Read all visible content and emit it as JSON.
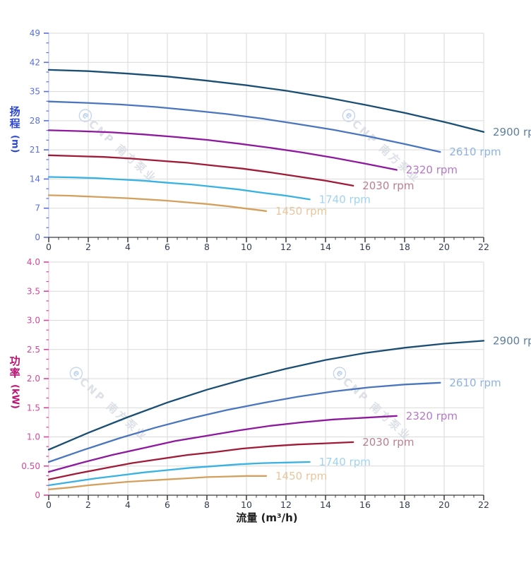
{
  "watermark": {
    "logo": "ⓔ",
    "text": "CNP 南方泵业"
  },
  "x_axis": {
    "title": "流量 (m³/h)",
    "tick_labels": [
      "0",
      "2",
      "4",
      "6",
      "8",
      "10",
      "12",
      "14",
      "16",
      "18",
      "20",
      "22"
    ],
    "min": 0,
    "max": 22,
    "major": 2,
    "minor": 0.5,
    "line_color": "#3c3c3c",
    "tick_color": "#3c3c3c",
    "label_color": "#333c52"
  },
  "chart_data": [
    {
      "type": "line",
      "title": "",
      "xlabel": "流量 (m³/h)",
      "ylabel": "扬程 (m)",
      "y_title": "扬程",
      "y_unit": "(m)",
      "xlim": [
        0,
        22
      ],
      "ylim": [
        0,
        49
      ],
      "y_major": 7,
      "y_tick_labels": [
        "0",
        "7",
        "14",
        "21",
        "28",
        "35",
        "42",
        "49"
      ],
      "grid": true,
      "legend_position": "line-end",
      "axis_line_color": "#b9c3f2",
      "tick_color": "#5b6ee0",
      "tick_label_color": "#5b6ee0",
      "grid_color": "#d9d9d9",
      "series": [
        {
          "name": "2900 rpm",
          "color": "#1a4e73",
          "label_color": "#5e7f9e",
          "x": [
            0,
            2,
            4,
            6,
            8,
            10,
            12,
            14,
            16,
            18,
            20,
            22
          ],
          "y": [
            40.2,
            39.9,
            39.3,
            38.6,
            37.6,
            36.5,
            35.2,
            33.6,
            31.8,
            29.9,
            27.7,
            25.3
          ]
        },
        {
          "name": "2610 rpm",
          "color": "#4a76c0",
          "label_color": "#8fb3de",
          "x": [
            0,
            1.8,
            3.6,
            5.4,
            7.2,
            9,
            10.8,
            12.6,
            14.4,
            16.2,
            18,
            19.8
          ],
          "y": [
            32.6,
            32.3,
            31.9,
            31.3,
            30.5,
            29.6,
            28.5,
            27.2,
            25.8,
            24.2,
            22.4,
            20.5
          ]
        },
        {
          "name": "2320 rpm",
          "color": "#8e189e",
          "label_color": "#b678c8",
          "x": [
            0,
            1.6,
            3.2,
            4.8,
            6.4,
            8,
            9.6,
            11.2,
            12.8,
            14.4,
            16,
            17.6
          ],
          "y": [
            25.7,
            25.5,
            25.2,
            24.7,
            24.1,
            23.4,
            22.5,
            21.5,
            20.4,
            19.1,
            17.7,
            16.2
          ]
        },
        {
          "name": "2030 rpm",
          "color": "#a01b38",
          "label_color": "#bb7f90",
          "x": [
            0,
            1.4,
            2.8,
            4.2,
            5.6,
            7,
            8.4,
            9.8,
            11.2,
            12.6,
            14,
            15.4
          ],
          "y": [
            19.7,
            19.5,
            19.3,
            18.9,
            18.4,
            17.9,
            17.2,
            16.5,
            15.6,
            14.6,
            13.6,
            12.4
          ]
        },
        {
          "name": "1740 rpm",
          "color": "#38b2e3",
          "label_color": "#9fd4f0",
          "x": [
            0,
            1.2,
            2.4,
            3.6,
            4.8,
            6,
            7.2,
            8.4,
            9.6,
            10.8,
            12,
            13.2
          ],
          "y": [
            14.5,
            14.4,
            14.2,
            13.9,
            13.6,
            13.1,
            12.7,
            12.1,
            11.5,
            10.7,
            10.0,
            9.1
          ]
        },
        {
          "name": "1450 rpm",
          "color": "#d3a05d",
          "label_color": "#e6c79c",
          "x": [
            0,
            1,
            2,
            3,
            4,
            5,
            6,
            7,
            8,
            9,
            10,
            11
          ],
          "y": [
            10.1,
            10.0,
            9.8,
            9.6,
            9.4,
            9.1,
            8.8,
            8.4,
            8.0,
            7.5,
            6.9,
            6.3
          ]
        }
      ]
    },
    {
      "type": "line",
      "title": "",
      "xlabel": "流量 (m³/h)",
      "ylabel": "功率 (kW)",
      "y_title": "功率",
      "y_unit": "(kW)",
      "xlim": [
        0,
        22
      ],
      "ylim": [
        0,
        4
      ],
      "y_major": 0.5,
      "y_tick_labels": [
        "0",
        "0.50",
        "1.0",
        "1.5",
        "2.0",
        "2.5",
        "3.0",
        "3.5",
        "4.0"
      ],
      "grid": true,
      "legend_position": "line-end",
      "axis_line_color": "#eec3dd",
      "tick_color": "#d6479b",
      "tick_label_color": "#d6479b",
      "grid_color": "#d9d9d9",
      "series": [
        {
          "name": "2900 rpm",
          "color": "#1a4e73",
          "label_color": "#5e7f9e",
          "x": [
            0,
            2,
            4,
            6,
            8,
            10,
            12,
            14,
            16,
            18,
            20,
            22
          ],
          "y": [
            0.78,
            1.07,
            1.34,
            1.59,
            1.81,
            2.0,
            2.17,
            2.32,
            2.44,
            2.53,
            2.6,
            2.65
          ]
        },
        {
          "name": "2610 rpm",
          "color": "#4a76c0",
          "label_color": "#8fb3de",
          "x": [
            0,
            1.8,
            3.6,
            5.4,
            7.2,
            9,
            10.8,
            12.6,
            14.4,
            16.2,
            18,
            19.8
          ],
          "y": [
            0.57,
            0.78,
            0.98,
            1.16,
            1.32,
            1.46,
            1.58,
            1.69,
            1.78,
            1.85,
            1.9,
            1.93
          ]
        },
        {
          "name": "2320 rpm",
          "color": "#8e189e",
          "label_color": "#b678c8",
          "x": [
            0,
            1.6,
            3.2,
            4.8,
            6.4,
            8,
            9.6,
            11.2,
            12.8,
            14.4,
            16,
            17.6
          ],
          "y": [
            0.4,
            0.55,
            0.69,
            0.81,
            0.93,
            1.02,
            1.11,
            1.19,
            1.25,
            1.3,
            1.33,
            1.36
          ]
        },
        {
          "name": "2030 rpm",
          "color": "#a01b38",
          "label_color": "#bb7f90",
          "x": [
            0,
            1.4,
            2.8,
            4.2,
            5.6,
            7,
            8.4,
            9.8,
            11.2,
            12.6,
            14,
            15.4
          ],
          "y": [
            0.27,
            0.37,
            0.46,
            0.55,
            0.62,
            0.69,
            0.74,
            0.8,
            0.84,
            0.87,
            0.89,
            0.91
          ]
        },
        {
          "name": "1740 rpm",
          "color": "#38b2e3",
          "label_color": "#9fd4f0",
          "x": [
            0,
            1.2,
            2.4,
            3.6,
            4.8,
            6,
            7.2,
            8.4,
            9.6,
            10.8,
            12,
            13.2
          ],
          "y": [
            0.17,
            0.23,
            0.29,
            0.34,
            0.39,
            0.43,
            0.47,
            0.5,
            0.53,
            0.55,
            0.56,
            0.57
          ]
        },
        {
          "name": "1450 rpm",
          "color": "#d3a05d",
          "label_color": "#e6c79c",
          "x": [
            0,
            1,
            2,
            3,
            4,
            5,
            6,
            7,
            8,
            9,
            10,
            11
          ],
          "y": [
            0.1,
            0.13,
            0.17,
            0.2,
            0.23,
            0.25,
            0.27,
            0.29,
            0.31,
            0.32,
            0.33,
            0.33
          ]
        }
      ]
    }
  ]
}
